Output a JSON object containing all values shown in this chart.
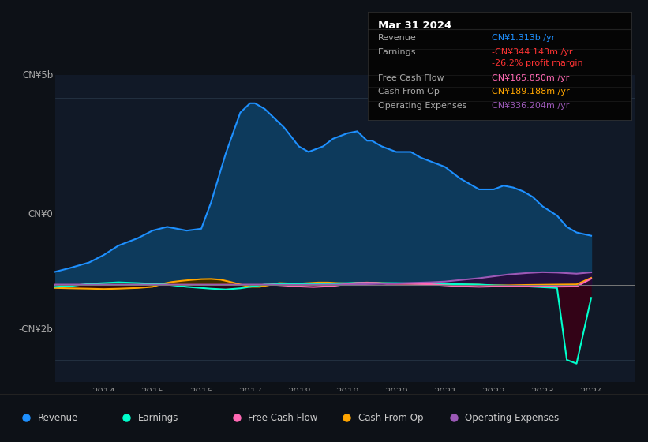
{
  "bg_color": "#0d1117",
  "plot_bg_color": "#111927",
  "xlim": [
    2013.0,
    2024.9
  ],
  "ylim": [
    -2600000000.0,
    5600000000.0
  ],
  "y_top_label": "CN¥5b",
  "y_zero_label": "CN¥0",
  "y_bot_label": "-CN¥2b",
  "y_top_val": 5000000000.0,
  "y_zero_val": 0,
  "y_bot_val": -2000000000.0,
  "x_ticks": [
    2014,
    2015,
    2016,
    2017,
    2018,
    2019,
    2020,
    2021,
    2022,
    2023,
    2024
  ],
  "info_box": {
    "title": "Mar 31 2024",
    "rows": [
      {
        "label": "Revenue",
        "value": "CN¥1.313b /yr",
        "value_color": "#1e90ff"
      },
      {
        "label": "Earnings",
        "value": "-CN¥344.143m /yr",
        "value_color": "#ff3333"
      },
      {
        "label": "",
        "value": "-26.2% profit margin",
        "value_color": "#ff3333"
      },
      {
        "label": "Free Cash Flow",
        "value": "CN¥165.850m /yr",
        "value_color": "#ff69b4"
      },
      {
        "label": "Cash From Op",
        "value": "CN¥189.188m /yr",
        "value_color": "#ffa500"
      },
      {
        "label": "Operating Expenses",
        "value": "CN¥336.204m /yr",
        "value_color": "#9b59b6"
      }
    ]
  },
  "series": {
    "revenue": {
      "color": "#1e90ff",
      "fill_color": "#0d3a5c",
      "x": [
        2013.0,
        2013.3,
        2013.7,
        2014.0,
        2014.3,
        2014.7,
        2015.0,
        2015.3,
        2015.5,
        2015.7,
        2016.0,
        2016.2,
        2016.5,
        2016.8,
        2017.0,
        2017.1,
        2017.3,
        2017.7,
        2018.0,
        2018.2,
        2018.5,
        2018.7,
        2019.0,
        2019.2,
        2019.4,
        2019.5,
        2019.7,
        2020.0,
        2020.3,
        2020.5,
        2020.7,
        2021.0,
        2021.3,
        2021.5,
        2021.7,
        2022.0,
        2022.2,
        2022.4,
        2022.6,
        2022.8,
        2023.0,
        2023.3,
        2023.5,
        2023.7,
        2024.0
      ],
      "y": [
        350000000.0,
        450000000.0,
        600000000.0,
        800000000.0,
        1050000000.0,
        1250000000.0,
        1450000000.0,
        1550000000.0,
        1500000000.0,
        1450000000.0,
        1500000000.0,
        2200000000.0,
        3500000000.0,
        4600000000.0,
        4850000000.0,
        4850000000.0,
        4700000000.0,
        4200000000.0,
        3700000000.0,
        3550000000.0,
        3700000000.0,
        3900000000.0,
        4050000000.0,
        4100000000.0,
        3850000000.0,
        3850000000.0,
        3700000000.0,
        3550000000.0,
        3550000000.0,
        3400000000.0,
        3300000000.0,
        3150000000.0,
        2850000000.0,
        2700000000.0,
        2550000000.0,
        2550000000.0,
        2650000000.0,
        2600000000.0,
        2500000000.0,
        2350000000.0,
        2100000000.0,
        1850000000.0,
        1550000000.0,
        1400000000.0,
        1313000000.0
      ]
    },
    "earnings": {
      "color": "#00ffcc",
      "x": [
        2013.0,
        2013.3,
        2013.7,
        2014.0,
        2014.3,
        2014.7,
        2015.0,
        2015.3,
        2015.5,
        2015.7,
        2016.0,
        2016.2,
        2016.5,
        2016.8,
        2017.0,
        2017.3,
        2017.7,
        2018.0,
        2018.3,
        2018.7,
        2019.0,
        2019.3,
        2019.7,
        2020.0,
        2020.3,
        2020.7,
        2021.0,
        2021.3,
        2021.7,
        2022.0,
        2022.3,
        2022.7,
        2023.0,
        2023.3,
        2023.5,
        2023.7,
        2024.0
      ],
      "y": [
        -50000000.0,
        -30000000.0,
        30000000.0,
        50000000.0,
        70000000.0,
        50000000.0,
        30000000.0,
        10000000.0,
        -20000000.0,
        -50000000.0,
        -80000000.0,
        -100000000.0,
        -120000000.0,
        -90000000.0,
        -50000000.0,
        10000000.0,
        30000000.0,
        30000000.0,
        40000000.0,
        40000000.0,
        50000000.0,
        60000000.0,
        50000000.0,
        50000000.0,
        40000000.0,
        30000000.0,
        25000000.0,
        20000000.0,
        10000000.0,
        -10000000.0,
        -20000000.0,
        -40000000.0,
        -60000000.0,
        -80000000.0,
        -2000000000.0,
        -2100000000.0,
        -344000000.0
      ]
    },
    "free_cash_flow": {
      "color": "#ff69b4",
      "x": [
        2013.0,
        2013.5,
        2014.0,
        2014.5,
        2015.0,
        2015.5,
        2016.0,
        2016.5,
        2017.0,
        2017.5,
        2018.0,
        2018.3,
        2018.7,
        2019.0,
        2019.2,
        2019.4,
        2019.6,
        2019.8,
        2020.0,
        2020.3,
        2020.7,
        2021.0,
        2021.3,
        2021.7,
        2022.0,
        2022.3,
        2022.7,
        2023.0,
        2023.3,
        2023.7,
        2024.0
      ],
      "y": [
        5000000.0,
        5000000.0,
        5000000.0,
        5000000.0,
        5000000.0,
        5000000.0,
        5000000.0,
        5000000.0,
        5000000.0,
        5000000.0,
        -40000000.0,
        -55000000.0,
        -30000000.0,
        30000000.0,
        55000000.0,
        60000000.0,
        55000000.0,
        30000000.0,
        30000000.0,
        30000000.0,
        20000000.0,
        -10000000.0,
        -35000000.0,
        -50000000.0,
        -40000000.0,
        -30000000.0,
        -25000000.0,
        -30000000.0,
        -45000000.0,
        -40000000.0,
        166000000.0
      ]
    },
    "cash_from_op": {
      "color": "#ffa500",
      "x": [
        2013.0,
        2013.3,
        2013.7,
        2014.0,
        2014.3,
        2014.5,
        2014.7,
        2015.0,
        2015.2,
        2015.4,
        2015.6,
        2015.8,
        2016.0,
        2016.2,
        2016.4,
        2016.6,
        2016.8,
        2017.0,
        2017.2,
        2017.4,
        2017.6,
        2017.8,
        2018.0,
        2018.2,
        2018.4,
        2018.6,
        2018.8,
        2019.0,
        2019.2,
        2019.4,
        2019.6,
        2019.8,
        2020.0,
        2020.3,
        2020.7,
        2021.0,
        2021.3,
        2021.7,
        2022.0,
        2022.3,
        2022.7,
        2023.0,
        2023.3,
        2023.7,
        2024.0
      ],
      "y": [
        -80000000.0,
        -90000000.0,
        -100000000.0,
        -110000000.0,
        -100000000.0,
        -90000000.0,
        -80000000.0,
        -50000000.0,
        30000000.0,
        80000000.0,
        110000000.0,
        135000000.0,
        155000000.0,
        160000000.0,
        140000000.0,
        80000000.0,
        10000000.0,
        -50000000.0,
        -50000000.0,
        0.0,
        50000000.0,
        40000000.0,
        35000000.0,
        50000000.0,
        65000000.0,
        65000000.0,
        50000000.0,
        40000000.0,
        55000000.0,
        65000000.0,
        55000000.0,
        45000000.0,
        40000000.0,
        35000000.0,
        30000000.0,
        25000000.0,
        15000000.0,
        5000000.0,
        -10000000.0,
        -10000000.0,
        0.0,
        5000000.0,
        10000000.0,
        15000000.0,
        189000000.0
      ]
    },
    "operating_expenses": {
      "color": "#9b59b6",
      "x": [
        2013.0,
        2014.0,
        2015.0,
        2016.0,
        2017.0,
        2018.0,
        2018.5,
        2019.0,
        2019.3,
        2019.7,
        2020.0,
        2020.3,
        2020.7,
        2021.0,
        2021.3,
        2021.7,
        2022.0,
        2022.3,
        2022.7,
        2023.0,
        2023.3,
        2023.7,
        2024.0
      ],
      "y": [
        2000000.0,
        2000000.0,
        2000000.0,
        2000000.0,
        2000000.0,
        2000000.0,
        5000000.0,
        10000000.0,
        20000000.0,
        30000000.0,
        40000000.0,
        55000000.0,
        70000000.0,
        90000000.0,
        130000000.0,
        180000000.0,
        230000000.0,
        280000000.0,
        320000000.0,
        340000000.0,
        330000000.0,
        300000000.0,
        336000000.0
      ]
    }
  },
  "legend": [
    {
      "label": "Revenue",
      "color": "#1e90ff"
    },
    {
      "label": "Earnings",
      "color": "#00ffcc"
    },
    {
      "label": "Free Cash Flow",
      "color": "#ff69b4"
    },
    {
      "label": "Cash From Op",
      "color": "#ffa500"
    },
    {
      "label": "Operating Expenses",
      "color": "#9b59b6"
    }
  ]
}
